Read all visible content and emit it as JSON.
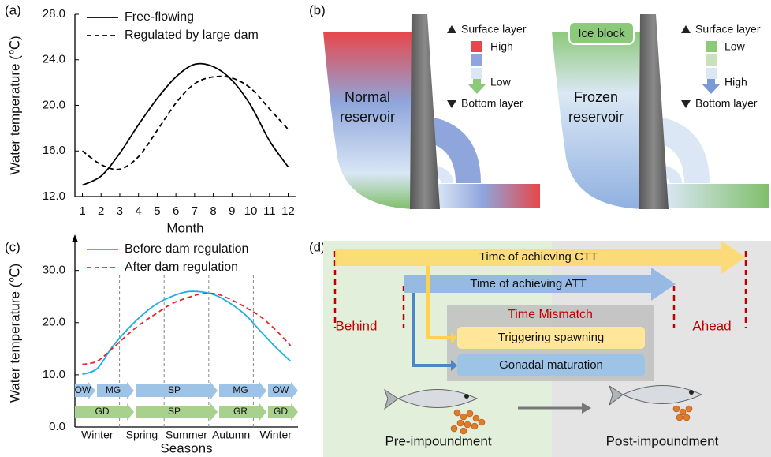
{
  "chart_data": [
    {
      "type": "line",
      "panel_label": "(a)",
      "x": [
        1,
        2,
        3,
        4,
        5,
        6,
        7,
        8,
        9,
        10,
        11,
        12
      ],
      "xlim": [
        0.6,
        12.4
      ],
      "xticks": [
        1,
        2,
        3,
        4,
        5,
        6,
        7,
        8,
        9,
        10,
        11,
        12
      ],
      "ylim": [
        12,
        28
      ],
      "yticks": [
        {
          "value": 12,
          "label": "12.0"
        },
        {
          "value": 16,
          "label": "16.0"
        },
        {
          "value": 20,
          "label": "20.0"
        },
        {
          "value": 24,
          "label": "24.0"
        },
        {
          "value": 28,
          "label": "28.0"
        }
      ],
      "xlabel": "Month",
      "ylabel": "Water temperature (℃)",
      "series": [
        {
          "name": "Free-flowing",
          "color": "#000000",
          "dash": false,
          "values": [
            13.0,
            13.8,
            15.8,
            18.3,
            20.6,
            22.5,
            23.6,
            23.4,
            22.2,
            20.0,
            16.9,
            14.6
          ]
        },
        {
          "name": "Regulated by large dam",
          "color": "#000000",
          "dash": true,
          "values": [
            16.0,
            14.8,
            14.4,
            15.5,
            17.8,
            20.2,
            21.9,
            22.5,
            22.4,
            21.5,
            19.7,
            17.9
          ]
        }
      ]
    },
    {
      "type": "line",
      "panel_label": "(c)",
      "categories": [
        null,
        "Winter",
        null,
        null,
        "Spring",
        null,
        null,
        "Summer",
        null,
        null,
        "Autumn",
        null,
        null,
        "Winter",
        null
      ],
      "ylim": [
        0,
        36
      ],
      "yticks": [
        {
          "value": 0,
          "label": "0.0"
        },
        {
          "value": 10,
          "label": "10.0"
        },
        {
          "value": 20,
          "label": "20.0"
        },
        {
          "value": 30,
          "label": "30.0"
        }
      ],
      "xlabel": "Seasons",
      "ylabel": "Water temperature (℃)",
      "series": [
        {
          "name": "Before dam regulation",
          "color": "#1aaee8",
          "dash": false,
          "values": [
            10.1,
            11.2,
            15.3,
            18.6,
            21.4,
            23.6,
            25.0,
            25.9,
            25.9,
            25.2,
            23.6,
            21.4,
            18.3,
            15.3,
            12.6
          ]
        },
        {
          "name": "After dam regulation",
          "color": "#e8262a",
          "dash": true,
          "values": [
            12.0,
            12.6,
            15.0,
            17.6,
            19.9,
            21.8,
            23.6,
            24.7,
            25.5,
            25.5,
            24.4,
            22.9,
            21.1,
            18.6,
            15.6
          ]
        }
      ],
      "stage_rows": [
        [
          "OW",
          "MG",
          "SP",
          "MG",
          "OW"
        ],
        [
          "GD",
          "SP",
          "GR",
          "GD"
        ]
      ]
    }
  ],
  "panel_b": {
    "panel_label": "(b)",
    "normal": {
      "label_lines": [
        "Normal",
        "reservoir"
      ],
      "legend": {
        "top": "Surface layer",
        "high": "High",
        "low": "Low",
        "bottom": "Bottom layer"
      }
    },
    "frozen": {
      "label_lines": [
        "Frozen",
        "reservoir"
      ],
      "ice": "Ice block",
      "legend": {
        "top": "Surface layer",
        "low": "Low",
        "high": "High",
        "bottom": "Bottom layer"
      }
    }
  },
  "panel_d": {
    "panel_label": "(d)",
    "ctt": "Time of achieving CTT",
    "att": "Time of achieving ATT",
    "mismatch": "Time Mismatch",
    "spawning": "Triggering spawning",
    "maturation": "Gonadal maturation",
    "behind": "Behind",
    "ahead": "Ahead",
    "pre": "Pre-impoundment",
    "post": "Post-impoundment"
  }
}
